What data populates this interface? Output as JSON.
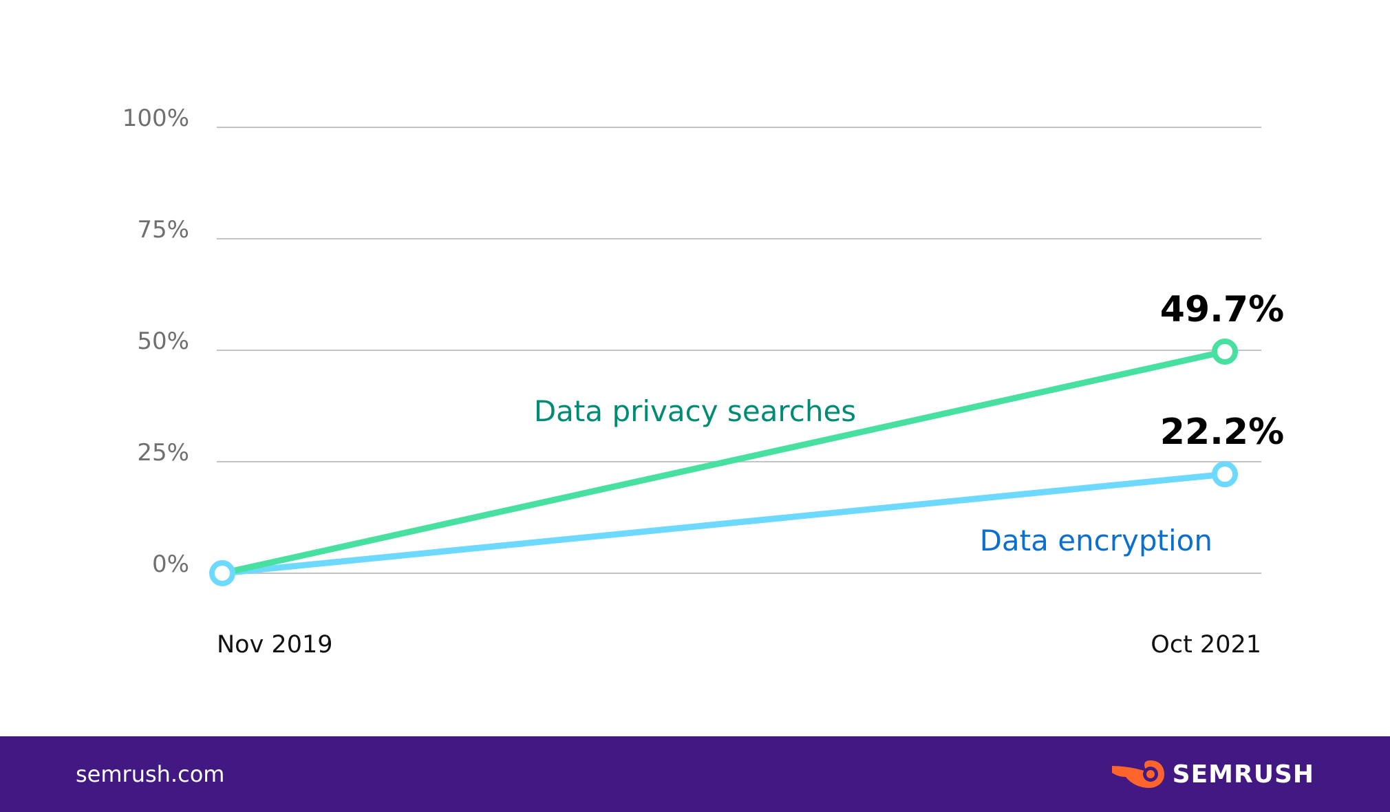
{
  "chart_data": {
    "type": "line",
    "x": [
      "Nov 2019",
      "Oct 2021"
    ],
    "yticks": [
      "100%",
      "75%",
      "50%",
      "25%",
      "0%"
    ],
    "ylim": [
      0,
      100
    ],
    "grid": true,
    "series": [
      {
        "name": "Data privacy searches",
        "values": [
          0,
          49.7
        ],
        "end_label": "49.7%",
        "color": "#47e0a0",
        "label_color": "#008b73"
      },
      {
        "name": "Data encryption",
        "values": [
          0,
          22.2
        ],
        "end_label": "22.2%",
        "color": "#6dd9fe",
        "label_color": "#0a6fd1"
      }
    ]
  },
  "footer": {
    "site": "semrush.com",
    "brand": "SEMRUSH",
    "brand_icon": "semrush-fire-icon",
    "background": "#421983"
  }
}
